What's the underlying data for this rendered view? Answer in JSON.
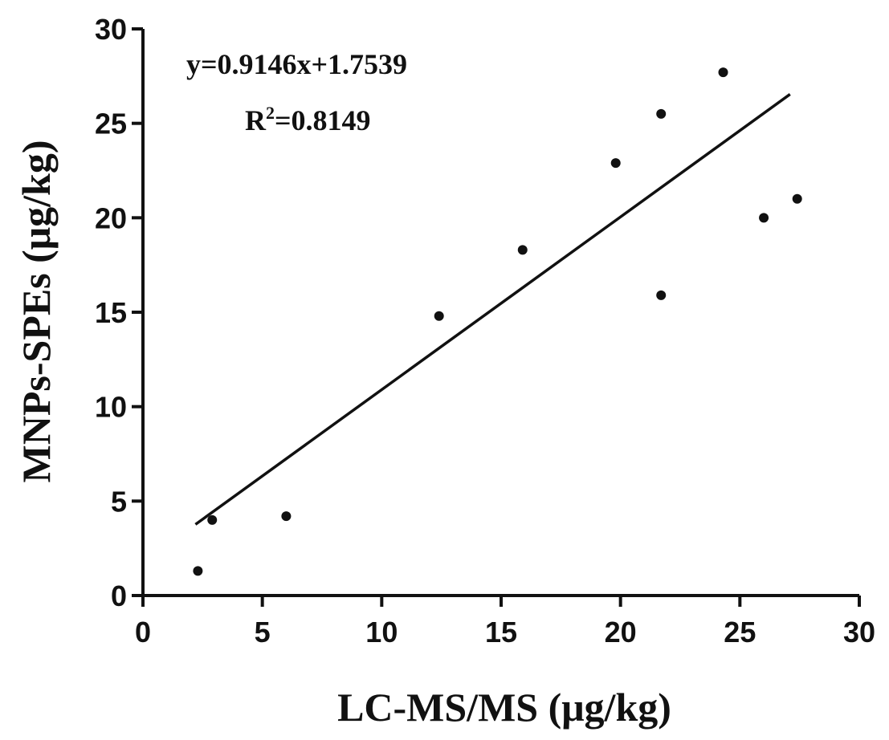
{
  "chart_data": {
    "type": "scatter",
    "title": "",
    "xlabel": "LC-MS/MS (μg/kg)",
    "ylabel": "MNPs-SPEs (μg/kg)",
    "xlim": [
      0,
      30
    ],
    "ylim": [
      0,
      30
    ],
    "x_ticks": [
      "0",
      "5",
      "10",
      "15",
      "20",
      "25",
      "30"
    ],
    "y_ticks": [
      "0",
      "5",
      "10",
      "15",
      "20",
      "25",
      "30"
    ],
    "grid": false,
    "legend": "none",
    "points": [
      {
        "x": 2.3,
        "y": 1.3
      },
      {
        "x": 2.9,
        "y": 4.0
      },
      {
        "x": 6.0,
        "y": 4.2
      },
      {
        "x": 12.4,
        "y": 14.8
      },
      {
        "x": 15.9,
        "y": 18.3
      },
      {
        "x": 19.8,
        "y": 22.9
      },
      {
        "x": 21.7,
        "y": 25.5
      },
      {
        "x": 21.7,
        "y": 15.9
      },
      {
        "x": 24.3,
        "y": 27.7
      },
      {
        "x": 26.0,
        "y": 20.0
      },
      {
        "x": 27.4,
        "y": 21.0
      }
    ],
    "fit_line": {
      "slope": 0.9146,
      "intercept": 1.7539,
      "x_range": [
        2.2,
        27.1
      ]
    },
    "annotations": {
      "equation": "y=0.9146x+1.7539",
      "r2_prefix": "R",
      "r2_sup": "2",
      "r2_value": "=0.8149"
    },
    "colors": {
      "marks": "#111111",
      "background": "#ffffff"
    }
  }
}
